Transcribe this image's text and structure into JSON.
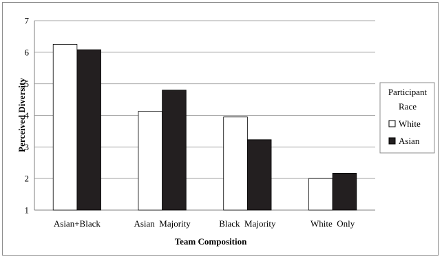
{
  "chart_data": {
    "type": "bar",
    "xlabel": "Team Composition",
    "ylabel": "Perceived Diversity",
    "categories": [
      "Asian+Black",
      "Asian  Majority",
      "Black  Majority",
      "White  Only"
    ],
    "ylim": [
      1,
      7
    ],
    "yticks": [
      1,
      2,
      3,
      4,
      5,
      6,
      7
    ],
    "grid": true,
    "legend_placement": "right",
    "legend_title": [
      "Participant",
      "Race"
    ],
    "series": [
      {
        "name": "White",
        "color": "#ffffff",
        "values": [
          6.25,
          4.13,
          3.95,
          2.0
        ]
      },
      {
        "name": "Asian",
        "color": "#231f20",
        "values": [
          6.08,
          4.8,
          3.23,
          2.17
        ]
      }
    ]
  }
}
